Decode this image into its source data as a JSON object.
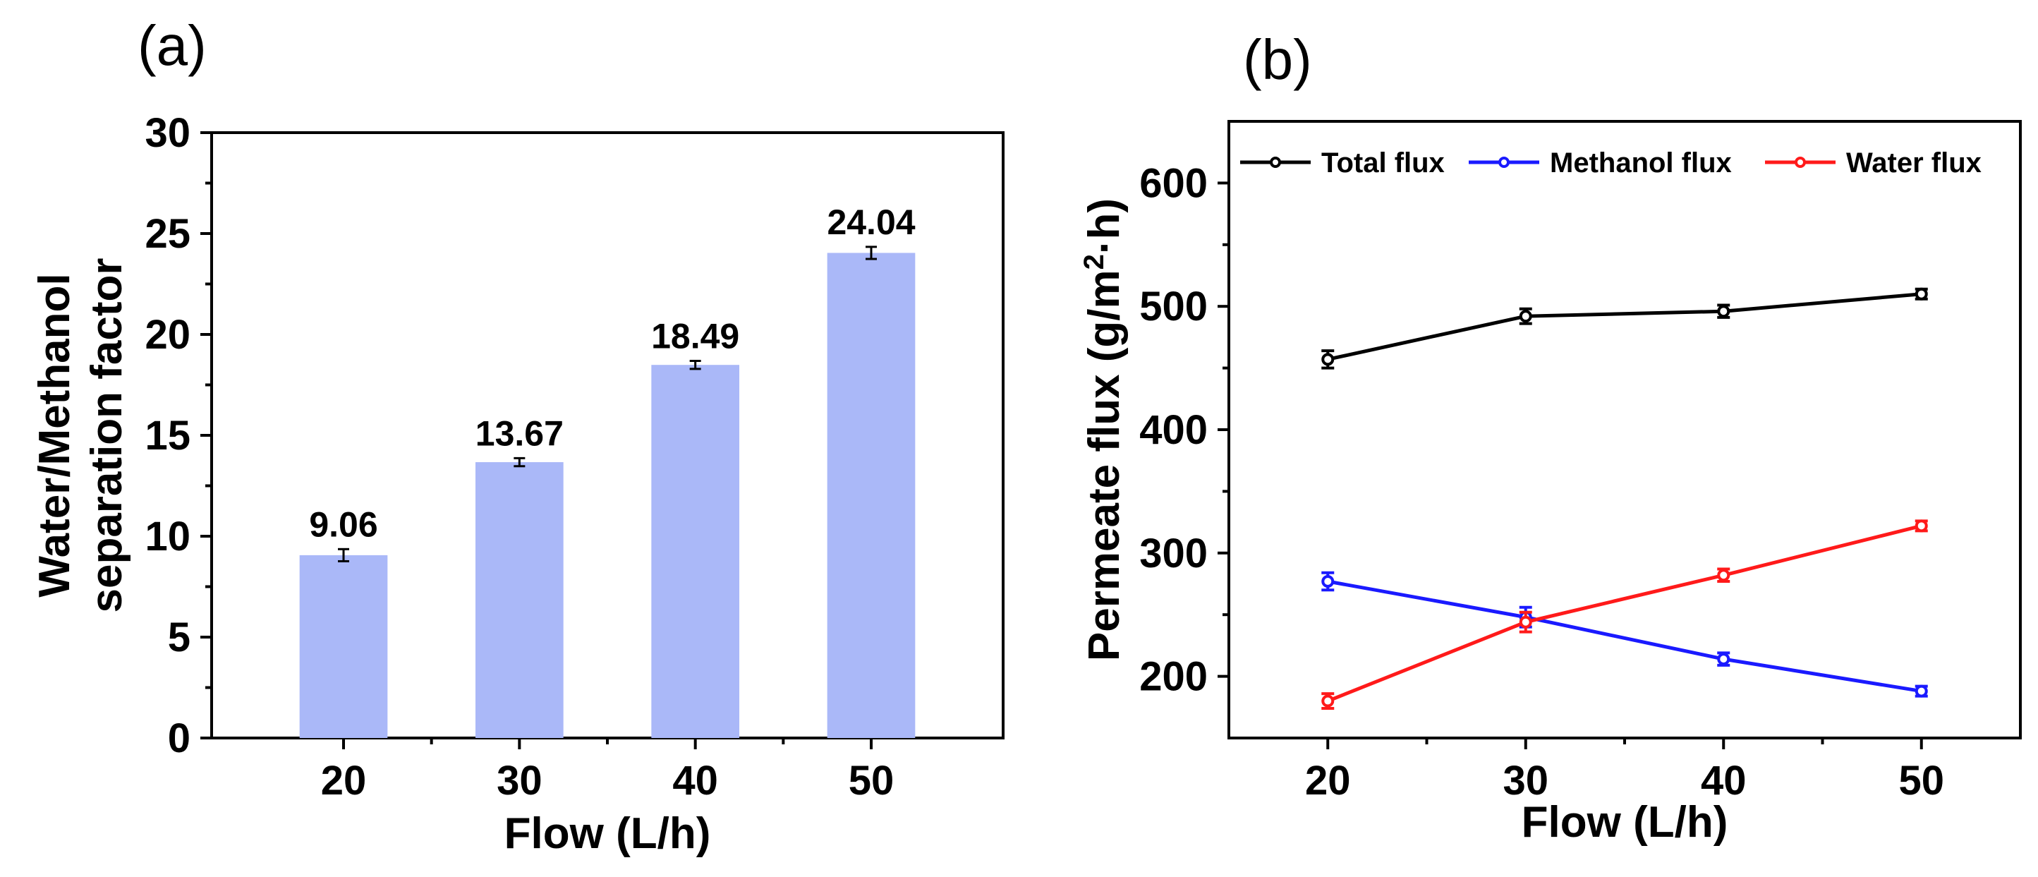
{
  "chart_data": [
    {
      "panel": "(a)",
      "type": "bar",
      "title": "",
      "xlabel": "Flow (L/h)",
      "ylabel_lines": [
        "Water/Methanol",
        "separation factor"
      ],
      "categories": [
        "20",
        "30",
        "40",
        "50"
      ],
      "values": [
        9.06,
        13.67,
        18.49,
        24.04
      ],
      "value_labels": [
        "9.06",
        "13.67",
        "18.49",
        "24.04"
      ],
      "error": [
        0.3,
        0.2,
        0.2,
        0.3
      ],
      "ylim": [
        0,
        30
      ],
      "yticks": [
        0,
        5,
        10,
        15,
        20,
        25,
        30
      ],
      "color": "#aab8f8",
      "grid": false,
      "legend": "none"
    },
    {
      "panel": "(b)",
      "type": "line",
      "title": "",
      "xlabel": "Flow (L/h)",
      "ylabel": "Permeate flux (g/m",
      "ylabel_sup": "2",
      "ylabel_tail": "·h)",
      "x": [
        20,
        30,
        40,
        50
      ],
      "xlim": [
        15,
        55
      ],
      "xticks": [
        20,
        30,
        40,
        50
      ],
      "ylim": [
        150,
        650
      ],
      "yticks": [
        200,
        300,
        400,
        500,
        600
      ],
      "series": [
        {
          "name": "Total flux",
          "color": "#000000",
          "values": [
            457,
            492,
            496,
            510
          ],
          "error": [
            7,
            6,
            5,
            4
          ]
        },
        {
          "name": "Methanol flux",
          "color": "#1a1aff",
          "values": [
            277,
            248,
            214,
            188
          ],
          "error": [
            7,
            8,
            5,
            4
          ]
        },
        {
          "name": "Water flux",
          "color": "#ff1a1a",
          "values": [
            180,
            244,
            282,
            322
          ],
          "error": [
            6,
            8,
            5,
            4
          ]
        }
      ],
      "grid": false,
      "legend": "top"
    }
  ]
}
